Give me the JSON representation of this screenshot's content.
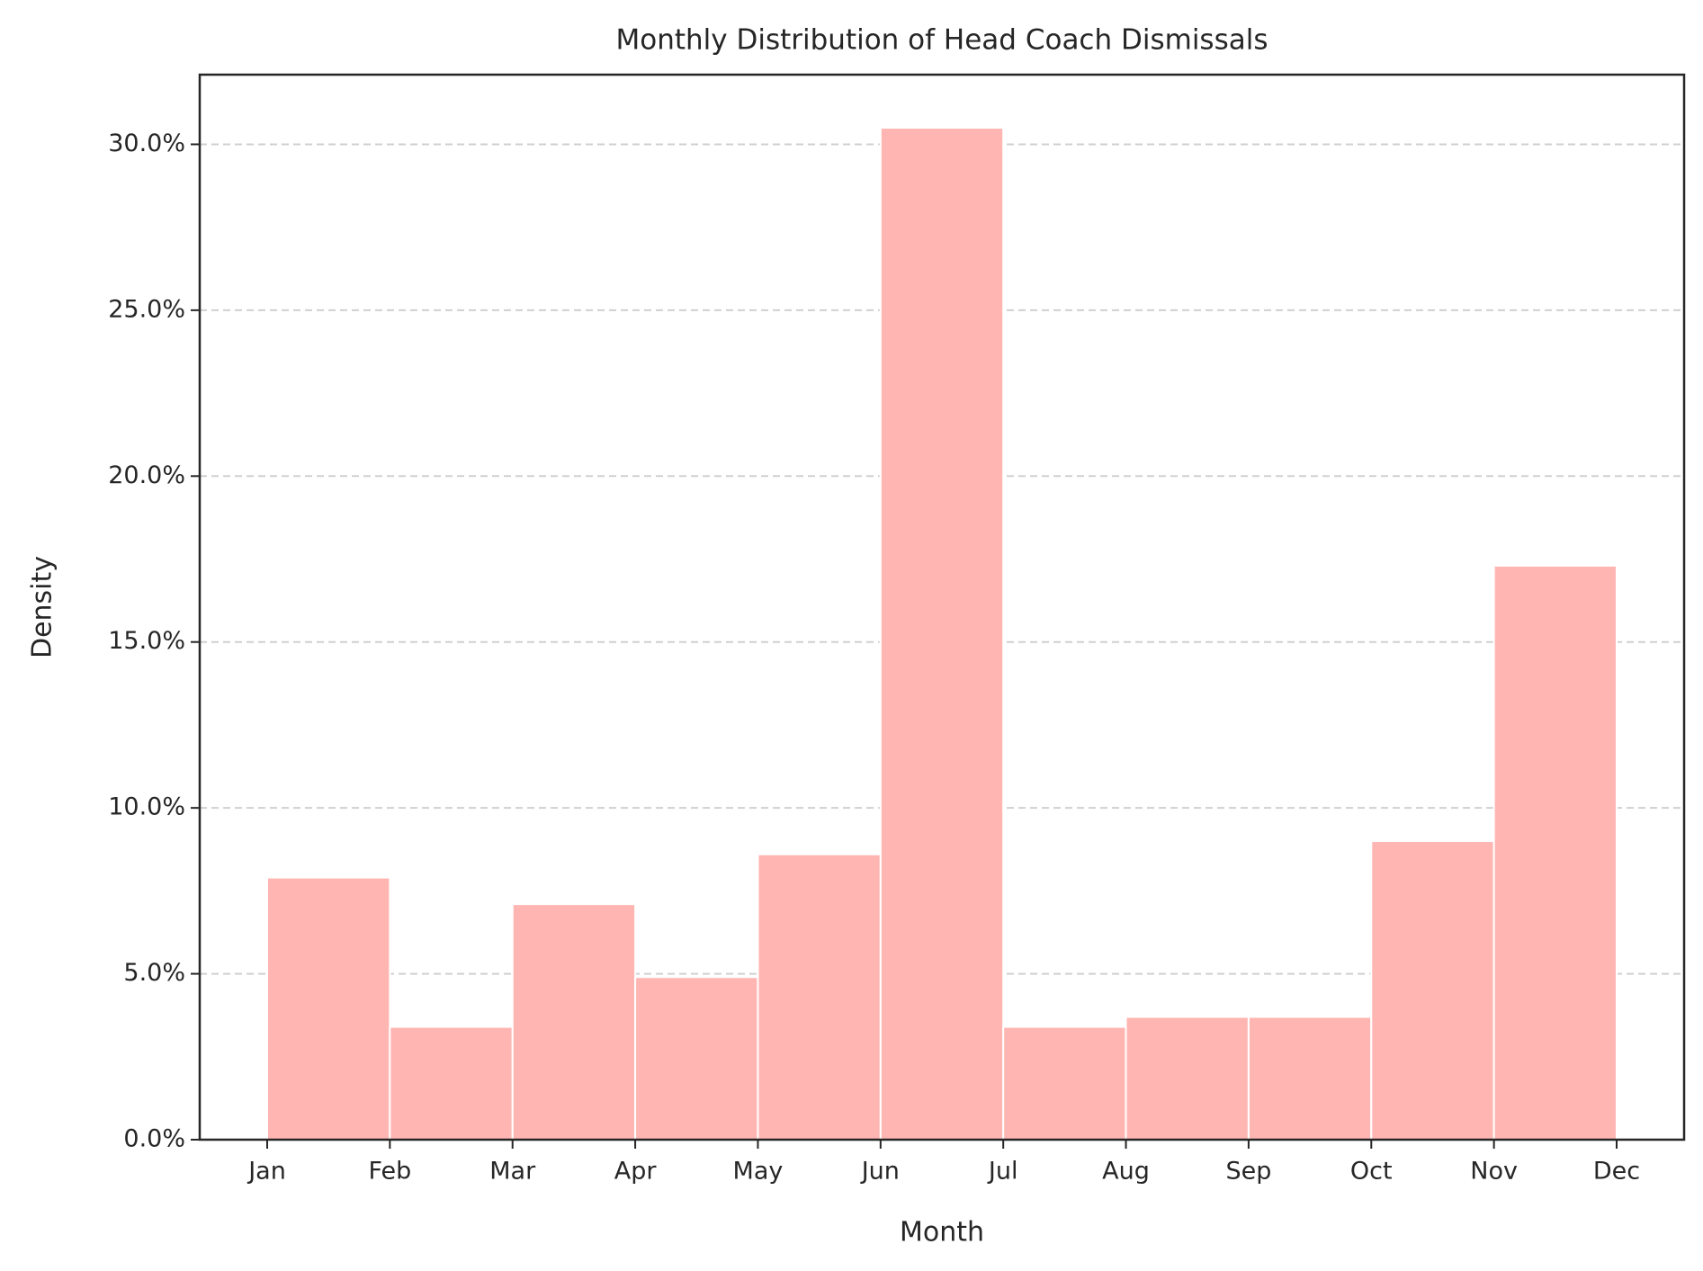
{
  "chart_data": {
    "type": "histogram",
    "title": "Monthly Distribution of Head Coach Dismissals",
    "xlabel": "Month",
    "ylabel": "Density",
    "bins": [
      1,
      2,
      3,
      4,
      5,
      6,
      7,
      8,
      9,
      10,
      11,
      12
    ],
    "values": [
      7.9,
      3.4,
      7.1,
      4.9,
      8.6,
      30.5,
      3.4,
      3.7,
      3.7,
      9.0,
      17.3
    ],
    "color": "#ffb6b3",
    "xlim": [
      0.45,
      12.55
    ],
    "xticks": [
      {
        "value": 1,
        "label": "Jan"
      },
      {
        "value": 2,
        "label": "Feb"
      },
      {
        "value": 3,
        "label": "Mar"
      },
      {
        "value": 4,
        "label": "Apr"
      },
      {
        "value": 5,
        "label": "May"
      },
      {
        "value": 6,
        "label": "Jun"
      },
      {
        "value": 7,
        "label": "Jul"
      },
      {
        "value": 8,
        "label": "Aug"
      },
      {
        "value": 9,
        "label": "Sep"
      },
      {
        "value": 10,
        "label": "Oct"
      },
      {
        "value": 11,
        "label": "Nov"
      },
      {
        "value": 12,
        "label": "Dec"
      }
    ],
    "ylim": [
      0,
      32.1
    ],
    "yticks": [
      {
        "value": 0,
        "label": "0.0%"
      },
      {
        "value": 5,
        "label": "5.0%"
      },
      {
        "value": 10,
        "label": "10.0%"
      },
      {
        "value": 15,
        "label": "15.0%"
      },
      {
        "value": 20,
        "label": "20.0%"
      },
      {
        "value": 25,
        "label": "25.0%"
      },
      {
        "value": 30,
        "label": "30.0%"
      }
    ],
    "grid": true
  }
}
